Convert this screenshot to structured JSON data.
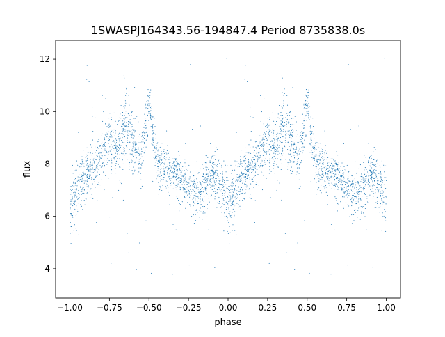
{
  "chart_data": {
    "type": "scatter",
    "title": "1SWASPJ164343.56-194847.4 Period 8735838.0s",
    "xlabel": "phase",
    "ylabel": "flux",
    "xlim": [
      -1.09,
      1.09
    ],
    "ylim": [
      2.88,
      12.72
    ],
    "xticks": [
      -1.0,
      -0.75,
      -0.5,
      -0.25,
      0.0,
      0.25,
      0.5,
      0.75,
      1.0
    ],
    "xtick_labels": [
      "−1.00",
      "−0.75",
      "−0.50",
      "−0.25",
      "0.00",
      "0.25",
      "0.50",
      "0.75",
      "1.00"
    ],
    "yticks": [
      4,
      6,
      8,
      10,
      12
    ],
    "ytick_labels": [
      "4",
      "6",
      "8",
      "10",
      "12"
    ],
    "grid": false,
    "legend": null,
    "point_color": "#1f77b4",
    "phase_profile": {
      "note_folded": "light curve repeated over phase -1..0 and 0..1",
      "phase": [
        0.0,
        0.05,
        0.1,
        0.15,
        0.2,
        0.25,
        0.3,
        0.35,
        0.4,
        0.45,
        0.5,
        0.55,
        0.6,
        0.65,
        0.7,
        0.75,
        0.8,
        0.85,
        0.9,
        0.95,
        1.0
      ],
      "mean_flux": [
        6.4,
        7.0,
        7.5,
        7.8,
        8.3,
        8.8,
        8.4,
        9.4,
        8.8,
        8.0,
        10.5,
        8.0,
        7.9,
        7.7,
        7.5,
        7.1,
        6.8,
        7.0,
        7.7,
        7.3,
        6.6
      ],
      "spread": [
        0.6,
        0.5,
        0.5,
        0.5,
        0.6,
        0.6,
        0.6,
        0.7,
        0.6,
        0.5,
        0.4,
        0.5,
        0.4,
        0.4,
        0.4,
        0.4,
        0.5,
        0.5,
        0.4,
        0.5,
        0.6
      ],
      "points_per_half": 1800
    }
  }
}
